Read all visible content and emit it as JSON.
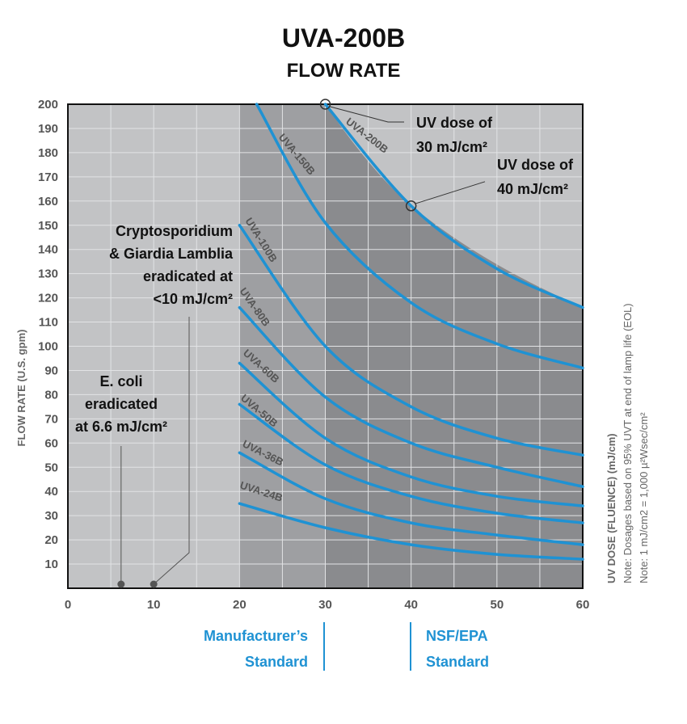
{
  "chart_data": {
    "type": "line",
    "title": "UVA-200B",
    "subtitle": "FLOW RATE",
    "ylabel": "FLOW RATE (U.S. gpm)",
    "xlabel": "UV DOSE (FLUENCE) (mJ/cm)",
    "xlim": [
      0,
      60
    ],
    "ylim": [
      0,
      200
    ],
    "x_ticks": [
      "0",
      "10",
      "20",
      "30",
      "40",
      "50",
      "60"
    ],
    "y_ticks": [
      "10",
      "20",
      "30",
      "40",
      "50",
      "60",
      "70",
      "80",
      "90",
      "100",
      "110",
      "120",
      "130",
      "140",
      "150",
      "160",
      "170",
      "180",
      "190",
      "200"
    ],
    "grid": true,
    "line_color": "#1f92d3",
    "series": [
      {
        "name": "UVA-200B",
        "x": [
          30,
          40,
          50,
          60
        ],
        "y": [
          200,
          158,
          132,
          116
        ]
      },
      {
        "name": "UVA-150B",
        "x": [
          22,
          30,
          40,
          50,
          60
        ],
        "y": [
          200,
          151,
          118,
          101,
          91
        ]
      },
      {
        "name": "UVA-100B",
        "x": [
          20,
          30,
          40,
          50,
          60
        ],
        "y": [
          150,
          100,
          75,
          62,
          55
        ]
      },
      {
        "name": "UVA-80B",
        "x": [
          20,
          30,
          40,
          50,
          60
        ],
        "y": [
          116,
          79,
          60,
          50,
          42
        ]
      },
      {
        "name": "UVA-60B",
        "x": [
          20,
          30,
          40,
          50,
          60
        ],
        "y": [
          93,
          62,
          46,
          38,
          34
        ]
      },
      {
        "name": "UVA-50B",
        "x": [
          20,
          30,
          40,
          50,
          60
        ],
        "y": [
          76,
          51,
          38,
          31,
          27
        ]
      },
      {
        "name": "UVA-36B",
        "x": [
          20,
          30,
          40,
          50,
          60
        ],
        "y": [
          56,
          37,
          27,
          22,
          18
        ]
      },
      {
        "name": "UVA-24B",
        "x": [
          20,
          30,
          40,
          50,
          60
        ],
        "y": [
          35,
          25,
          18,
          14,
          12
        ]
      }
    ],
    "annotations": {
      "dose30": [
        "UV dose of",
        "30 mJ/cm²"
      ],
      "dose40": [
        "UV dose of",
        "40 mJ/cm²"
      ],
      "crypto": [
        "Cryptosporidium",
        "& Giardia Lamblia",
        "eradicated at",
        "<10 mJ/cm²"
      ],
      "ecoli": [
        "E. coli",
        "eradicated",
        "at 6.6 mJ/cm²"
      ]
    },
    "side_notes": [
      "Note: Dosages based on 95% UVT at end of lamp life (EOL)",
      "Note: 1 mJ/cm2 = 1,000 µ²Wsec/cm²"
    ],
    "standards": {
      "manufacturer": [
        "Manufacturer’s",
        "Standard"
      ],
      "nsf": [
        "NSF/EPA",
        "Standard"
      ]
    },
    "colors": {
      "region_light": "#c2c3c5",
      "region_mid": "#9e9fa2",
      "region_dark": "#8a8b8e",
      "grid": "#e2e3e5"
    }
  }
}
